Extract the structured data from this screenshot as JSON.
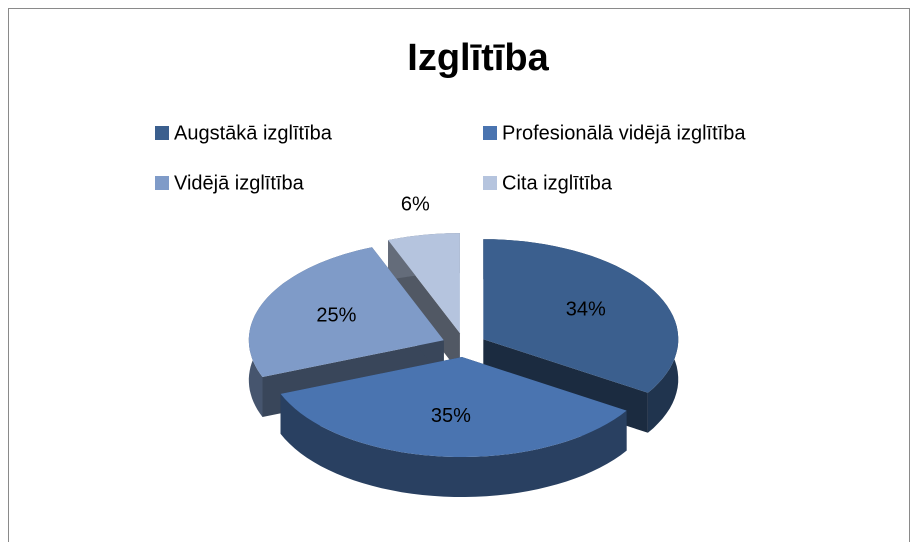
{
  "chart_data": {
    "type": "pie",
    "title": "Izglītība",
    "categories": [
      "Augstākā izglītība",
      "Profesionālā vidējā izglītība",
      "Vidējā izglītība",
      "Cita izglītība"
    ],
    "values": [
      34,
      35,
      25,
      6
    ],
    "value_labels": [
      "34%",
      "35%",
      "25%",
      "6%"
    ],
    "colors": [
      "#3b5f8e",
      "#4a74b0",
      "#7f9bc8",
      "#b5c4de"
    ],
    "legend": "top"
  }
}
